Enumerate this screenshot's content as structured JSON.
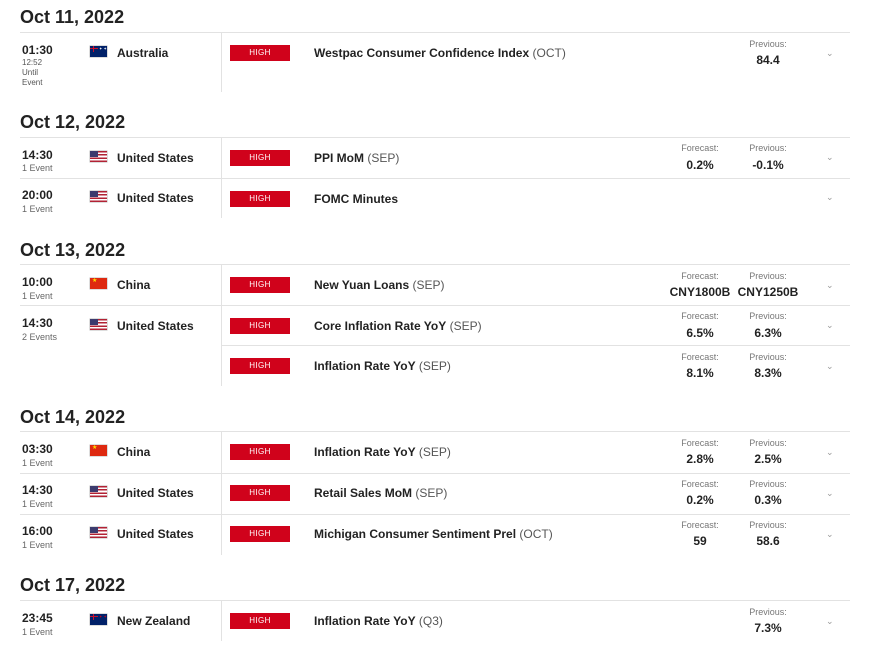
{
  "colors": {
    "impact_high": "#d0021b",
    "divider": "#e2e2e2"
  },
  "labels": {
    "forecast": "Forecast:",
    "previous": "Previous:",
    "chevron_icon": "chevron-down-icon"
  },
  "days": [
    {
      "date": "Oct 11, 2022",
      "rows": [
        {
          "time": "01:30",
          "sub1": "12:52",
          "sub2": "Until",
          "sub3": "Event",
          "flag": "flag-australia",
          "country": "Australia",
          "impact": "HIGH",
          "event_name": "Westpac Consumer Confidence Index",
          "event_period": "(OCT)",
          "previous": "84.4"
        }
      ]
    },
    {
      "date": "Oct 12, 2022",
      "rows": [
        {
          "time": "14:30",
          "events_count": "1 Event",
          "flag": "flag-united-states",
          "country": "United States",
          "impact": "HIGH",
          "event_name": "PPI MoM",
          "event_period": "(SEP)",
          "forecast": "0.2%",
          "previous": "-0.1%"
        },
        {
          "time": "20:00",
          "events_count": "1 Event",
          "flag": "flag-united-states",
          "country": "United States",
          "impact": "HIGH",
          "event_name": "FOMC Minutes",
          "event_period": ""
        }
      ]
    },
    {
      "date": "Oct 13, 2022",
      "rows": [
        {
          "time": "10:00",
          "events_count": "1 Event",
          "flag": "flag-china",
          "country": "China",
          "impact": "HIGH",
          "event_name": "New Yuan Loans",
          "event_period": "(SEP)",
          "forecast": "CNY1800B",
          "previous": "CNY1250B"
        },
        {
          "time": "14:30",
          "events_count": "2 Events",
          "flag": "flag-united-states",
          "country": "United States",
          "impact": "HIGH",
          "event_name": "Core Inflation Rate YoY",
          "event_period": "(SEP)",
          "forecast": "6.5%",
          "previous": "6.3%"
        },
        {
          "impact": "HIGH",
          "event_name": "Inflation Rate YoY",
          "event_period": "(SEP)",
          "forecast": "8.1%",
          "previous": "8.3%"
        }
      ]
    },
    {
      "date": "Oct 14, 2022",
      "rows": [
        {
          "time": "03:30",
          "events_count": "1 Event",
          "flag": "flag-china",
          "country": "China",
          "impact": "HIGH",
          "event_name": "Inflation Rate YoY",
          "event_period": "(SEP)",
          "forecast": "2.8%",
          "previous": "2.5%"
        },
        {
          "time": "14:30",
          "events_count": "1 Event",
          "flag": "flag-united-states",
          "country": "United States",
          "impact": "HIGH",
          "event_name": "Retail Sales MoM",
          "event_period": "(SEP)",
          "forecast": "0.2%",
          "previous": "0.3%"
        },
        {
          "time": "16:00",
          "events_count": "1 Event",
          "flag": "flag-united-states",
          "country": "United States",
          "impact": "HIGH",
          "event_name": "Michigan Consumer Sentiment Prel",
          "event_period": "(OCT)",
          "forecast": "59",
          "previous": "58.6"
        }
      ]
    },
    {
      "date": "Oct 17, 2022",
      "rows": [
        {
          "time": "23:45",
          "events_count": "1 Event",
          "flag": "flag-new-zealand",
          "country": "New Zealand",
          "impact": "HIGH",
          "event_name": "Inflation Rate YoY",
          "event_period": "(Q3)",
          "previous": "7.3%"
        }
      ]
    }
  ]
}
